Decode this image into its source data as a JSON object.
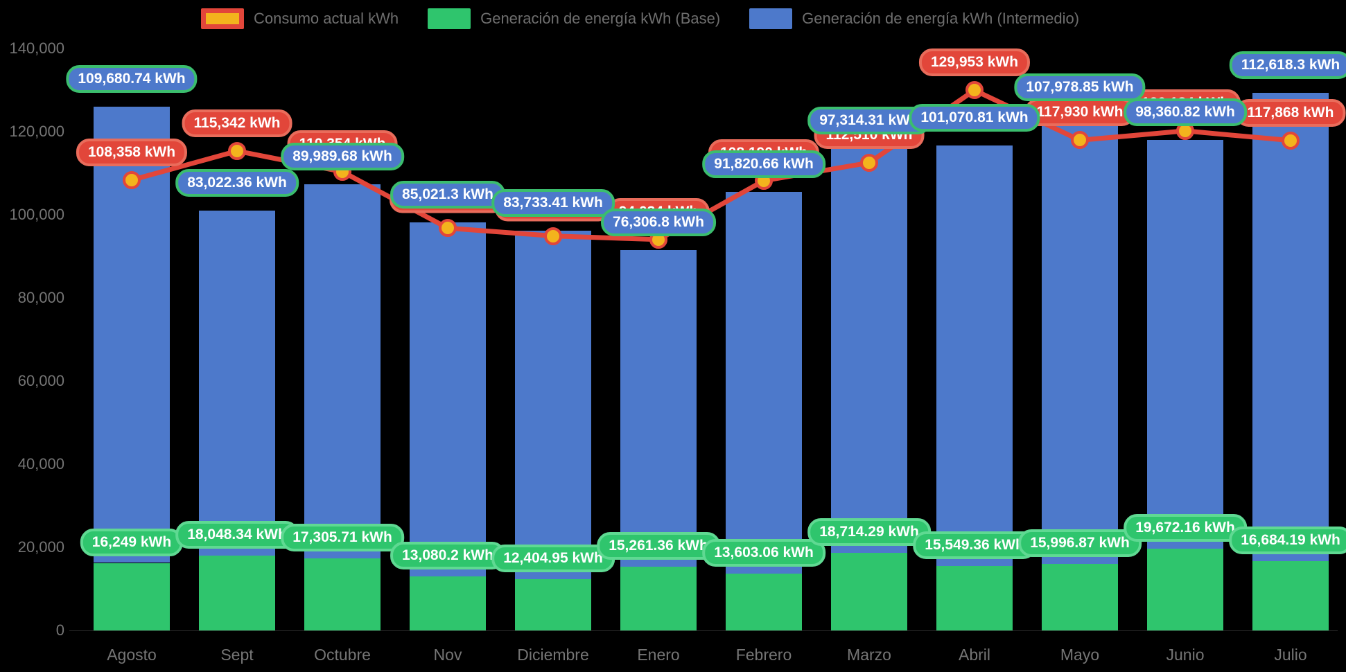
{
  "colors": {
    "background": "#000000",
    "bar_intermedio": "#4D79CB",
    "bar_base": "#2FC56D",
    "line_consumo": "#E2463A",
    "point_fill": "#F3B41D",
    "pill_blue_bg": "#4D79CB",
    "pill_blue_border": "#3BBD6E",
    "pill_green_bg": "#2FC56D",
    "pill_green_border": "#5FD992",
    "pill_red_bg": "#E2463A",
    "pill_red_border": "#E96C5B",
    "axis_text": "#757575",
    "legend_text": "#6E6E6E",
    "legend_consumo_fill": "#F3B41D",
    "legend_consumo_border": "#E2463A"
  },
  "legend": {
    "items": [
      {
        "id": "consumo",
        "label": "Consumo actual kWh"
      },
      {
        "id": "base",
        "label": "Generación de energía kWh (Base)"
      },
      {
        "id": "intermedio",
        "label": "Generación de energía kWh (Intermedio)"
      }
    ]
  },
  "y_axis": {
    "tick_labels": [
      "140,000",
      "120,000",
      "100,000",
      "80,000",
      "60,000",
      "40,000",
      "20,000",
      "0"
    ],
    "tick_values": [
      140000,
      120000,
      100000,
      80000,
      60000,
      40000,
      20000,
      0
    ]
  },
  "chart_data": {
    "type": "combo: stacked bar + line",
    "categories": [
      "Agosto",
      "Sept",
      "Octubre",
      "Nov",
      "Diciembre",
      "Enero",
      "Febrero",
      "Marzo",
      "Abril",
      "Mayo",
      "Junio",
      "Julio"
    ],
    "ylim": [
      0,
      140000
    ],
    "grid": false,
    "legend_position": "top",
    "series": [
      {
        "name": "Consumo actual kWh",
        "type": "line",
        "values": [
          108358,
          115342,
          110354,
          96800,
          94900,
          94034,
          108190,
          112510,
          129953,
          117930,
          120184,
          117868
        ],
        "labels": [
          "108,358 kWh",
          "115,342 kWh",
          "110,354 kWh",
          "",
          "",
          "94,034 kWh",
          "108,190 kWh",
          "112,510 kWh",
          "129,953 kWh",
          "117,930 kWh",
          "120,184 kWh",
          "117,868 kWh"
        ],
        "note": "Nov and Diciembre line labels are covered by the bar labels in the screenshot; their values are estimated from point positions"
      },
      {
        "name": "Generación de energía kWh (Base)",
        "type": "bar",
        "stack": "gen",
        "values": [
          16249,
          18048.34,
          17305.71,
          13080.2,
          12404.95,
          15261.36,
          13603.06,
          18714.29,
          15549.36,
          15996.87,
          19672.16,
          16684.19
        ],
        "labels": [
          "16,249 kWh",
          "18,048.34 kWh",
          "17,305.71 kWh",
          "13,080.2 kWh",
          "12,404.95 kWh",
          "15,261.36 kWh",
          "13,603.06 kWh",
          "18,714.29 kWh",
          "15,549.36 kWh",
          "15,996.87 kWh",
          "19,672.16 kWh",
          "16,684.19 kWh"
        ]
      },
      {
        "name": "Generación de energía kWh (Intermedio)",
        "type": "bar",
        "stack": "gen",
        "values": [
          109680.74,
          83022.36,
          89989.68,
          85021.3,
          83733.41,
          76306.8,
          91820.66,
          97314.31,
          101070.81,
          107978.85,
          98360.82,
          112618.3
        ],
        "labels": [
          "109,680.74 kWh",
          "83,022.36 kWh",
          "89,989.68 kWh",
          "85,021.3 kWh",
          "83,733.41 kWh",
          "76,306.8 kWh",
          "91,820.66 kWh",
          "97,314.31 kWh",
          "101,070.81 kWh",
          "107,978.85 kWh",
          "98,360.82 kWh",
          "112,618.3 kWh"
        ]
      }
    ]
  }
}
